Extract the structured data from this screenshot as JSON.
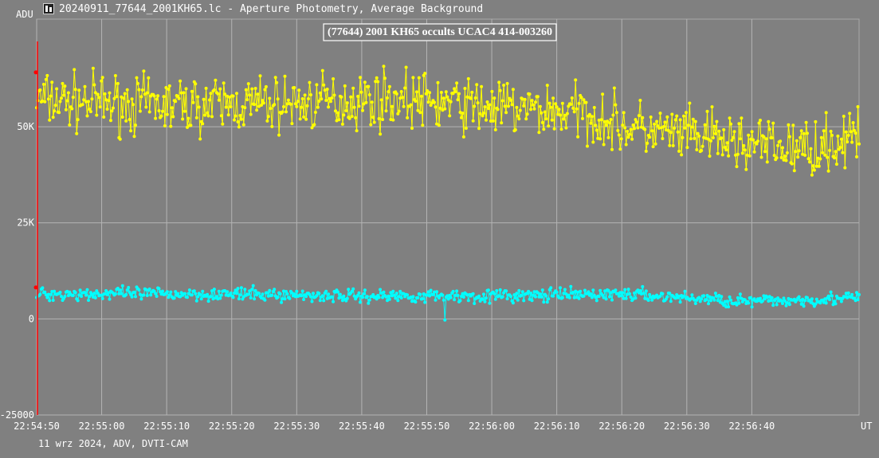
{
  "window": {
    "title": "20240911_77644_2001KH65.lc - Aperture Photometry, Average Background",
    "icon": "lightcurve-app-icon"
  },
  "footer": "11 wrz 2024, ADV, DVTI-CAM",
  "chart_data": {
    "type": "line",
    "title": "(77644) 2001 KH65 occults UCAC4 414-003260",
    "ylabel": "ADU",
    "xlabel": "UT",
    "ylim": [
      -25000,
      78000
    ],
    "xlim": [
      0,
      126.5
    ],
    "y_ticks": [
      {
        "value": 50000,
        "label": "50K"
      },
      {
        "value": 25000,
        "label": "25K"
      },
      {
        "value": 0,
        "label": "0"
      },
      {
        "value": -25000,
        "label": "-25000"
      }
    ],
    "x_ticks": [
      {
        "value": 0,
        "label": "22:54:50"
      },
      {
        "value": 10,
        "label": "22:55:00"
      },
      {
        "value": 20,
        "label": "22:55:10"
      },
      {
        "value": 30,
        "label": "22:55:20"
      },
      {
        "value": 40,
        "label": "22:55:30"
      },
      {
        "value": 50,
        "label": "22:55:40"
      },
      {
        "value": 60,
        "label": "22:55:50"
      },
      {
        "value": 70,
        "label": "22:56:00"
      },
      {
        "value": 80,
        "label": "22:56:10"
      },
      {
        "value": 90,
        "label": "22:56:20"
      },
      {
        "value": 100,
        "label": "22:56:30"
      },
      {
        "value": 110,
        "label": "22:56:40"
      }
    ],
    "grid": true,
    "marker_x": 0,
    "series": [
      {
        "color": "#ffff00",
        "noise": 5500,
        "count": 700,
        "trend": [
          [
            0,
            57000
          ],
          [
            20,
            55500
          ],
          [
            40,
            56000
          ],
          [
            55,
            57500
          ],
          [
            70,
            55000
          ],
          [
            85,
            53500
          ],
          [
            90,
            50000
          ],
          [
            100,
            47500
          ],
          [
            110,
            45500
          ],
          [
            117,
            44000
          ],
          [
            126.5,
            47000
          ]
        ]
      },
      {
        "color": "#00ffff",
        "noise": 1300,
        "count": 700,
        "trend": [
          [
            0,
            6500
          ],
          [
            25,
            6500
          ],
          [
            50,
            6000
          ],
          [
            75,
            6000
          ],
          [
            90,
            6500
          ],
          [
            100,
            5500
          ],
          [
            110,
            4500
          ],
          [
            126.5,
            5500
          ]
        ],
        "dip": {
          "x": 62.8,
          "value": -300
        }
      }
    ]
  }
}
